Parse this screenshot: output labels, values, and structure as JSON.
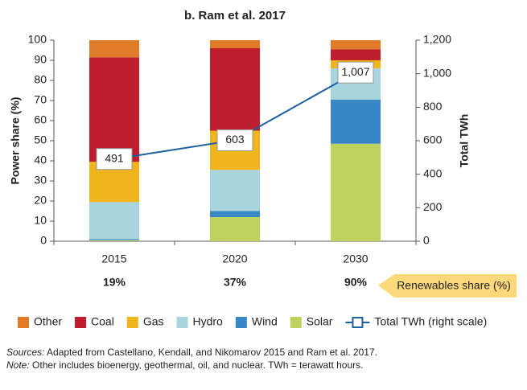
{
  "chart_data": {
    "type": "stacked-bar-line",
    "title": "b. Ram et al. 2017",
    "categories": [
      "2015",
      "2020",
      "2030"
    ],
    "y_label": "Power share (%)",
    "y2_label": "Total TWh",
    "ylim": [
      0,
      100
    ],
    "yticks": [
      0,
      10,
      20,
      30,
      40,
      50,
      60,
      70,
      80,
      90,
      100
    ],
    "y2lim": [
      0,
      1200
    ],
    "y2ticks": [
      0,
      200,
      400,
      600,
      800,
      {
        "value": 1000,
        "label": "1,000"
      },
      {
        "value": 1200,
        "label": "1,200"
      }
    ],
    "series": [
      {
        "name": "Other",
        "color": "#e07b2a",
        "values": [
          8.5,
          4,
          4.5
        ]
      },
      {
        "name": "Coal",
        "color": "#be1e2d",
        "values": [
          52,
          41,
          5.5
        ]
      },
      {
        "name": "Gas",
        "color": "#f0b41c",
        "values": [
          20,
          19.5,
          4
        ]
      },
      {
        "name": "Hydro",
        "color": "#a8d5dd",
        "values": [
          18.5,
          20.5,
          15.5
        ]
      },
      {
        "name": "Wind",
        "color": "#3a87c8",
        "values": [
          0.5,
          3,
          22
        ]
      },
      {
        "name": "Solar",
        "color": "#bfd260",
        "values": [
          0.5,
          12,
          48.5
        ]
      },
      {
        "name": "Total TWh (right scale)",
        "color": "#1d5fa0",
        "axis": "y2",
        "values": [
          491,
          603,
          1007
        ],
        "value_labels": [
          "491",
          "603",
          "1,007"
        ]
      }
    ],
    "renewables": {
      "name": "Renewables share (%)",
      "values": [
        19,
        37,
        90
      ],
      "value_labels": [
        "19%",
        "37%",
        "90%"
      ]
    },
    "notes": {
      "sources_label": "Sources:",
      "sources_text": "Adapted from Castellano, Kendall, and Nikomarov 2015 and Ram et al. 2017.",
      "note_label": "Note:",
      "note_text": "Other includes bioenergy, geothermal, oil, and nuclear. TWh = terawatt hours."
    }
  }
}
